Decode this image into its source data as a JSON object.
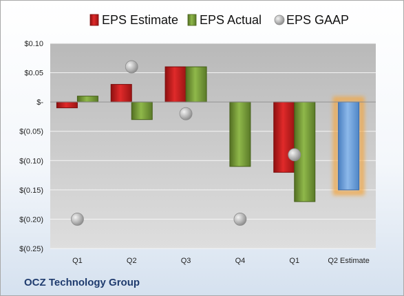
{
  "company": "OCZ Technology Group",
  "chart_data": {
    "type": "bar",
    "categories": [
      "Q1",
      "Q2",
      "Q3",
      "Q4",
      "Q1",
      "Q2 Estimate"
    ],
    "ylim": [
      -0.25,
      0.1
    ],
    "yticks": [
      0.1,
      0.05,
      0,
      -0.05,
      -0.1,
      -0.15,
      -0.2,
      -0.25
    ],
    "ytick_labels": [
      "$0.10",
      "$0.05",
      "$-",
      "$(0.05)",
      "$(0.10)",
      "$(0.15)",
      "$(0.20)",
      "$(0.25)"
    ],
    "legend_position": "top",
    "grid": true,
    "series": [
      {
        "name": "EPS Estimate",
        "kind": "bar",
        "color": "#cc1f1f",
        "values": [
          -0.01,
          0.03,
          0.06,
          null,
          -0.12,
          null
        ]
      },
      {
        "name": "EPS Actual",
        "kind": "bar",
        "color": "#7aa03a",
        "values": [
          0.01,
          -0.03,
          0.06,
          -0.11,
          -0.17,
          null
        ]
      },
      {
        "name": "EPS GAAP",
        "kind": "marker",
        "color": "#b3b3b3",
        "values": [
          -0.2,
          0.06,
          -0.02,
          -0.2,
          -0.09,
          null
        ]
      },
      {
        "name": "Q2 Estimate",
        "kind": "bar",
        "color": "#6fa0d8",
        "highlight": "#f3a640",
        "values": [
          null,
          null,
          null,
          null,
          null,
          -0.15
        ]
      }
    ]
  }
}
